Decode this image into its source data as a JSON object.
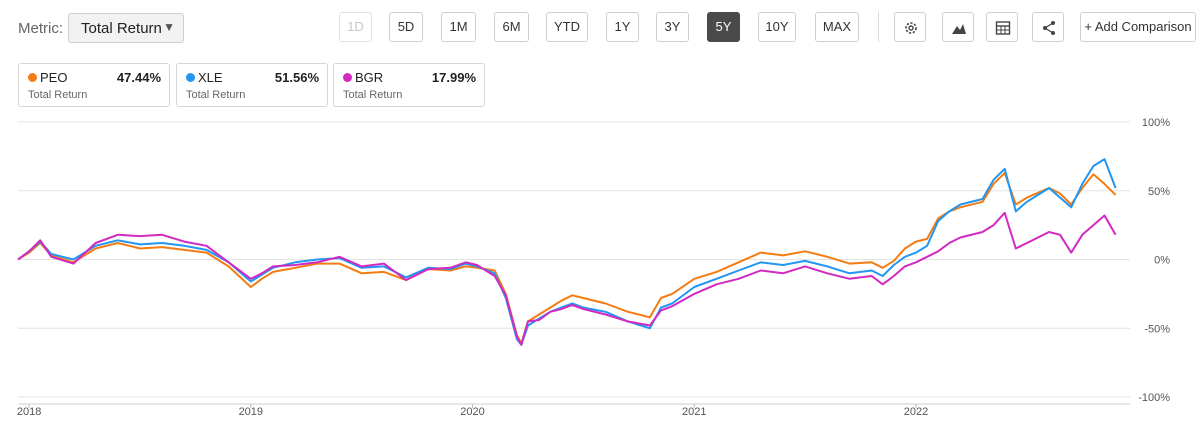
{
  "toolbar": {
    "metric_label": "Metric:",
    "metric_value": "Total Return",
    "ranges": [
      "1D",
      "5D",
      "1M",
      "6M",
      "YTD",
      "1Y",
      "3Y",
      "5Y",
      "10Y",
      "MAX"
    ],
    "disabled_range": "1D",
    "active_range": "5Y",
    "icons": [
      "gear-icon",
      "mountain-chart-icon",
      "table-icon",
      "share-icon"
    ],
    "add_comparison": "+ Add Comparison"
  },
  "legend": [
    {
      "ticker": "PEO",
      "value": "47.44%",
      "sub": "Total Return",
      "color": "#f57c12"
    },
    {
      "ticker": "XLE",
      "value": "51.56%",
      "sub": "Total Return",
      "color": "#2196f3"
    },
    {
      "ticker": "BGR",
      "value": "17.99%",
      "sub": "Total Return",
      "color": "#d12ac0"
    }
  ],
  "chart_data": {
    "type": "line",
    "ylim": [
      -100,
      100
    ],
    "yticks": [
      100,
      50,
      0,
      -50,
      -100
    ],
    "ytick_labels": [
      "100%",
      "50%",
      "0%",
      "-50%",
      "-100%"
    ],
    "xlim": [
      2017.95,
      2022.92
    ],
    "xticks": [
      2018,
      2019,
      2020,
      2021,
      2022
    ],
    "xtick_labels": [
      "2018",
      "2019",
      "2020",
      "2021",
      "2022"
    ],
    "grid": "horizontal",
    "series": [
      {
        "name": "PEO",
        "color": "#f57c12",
        "points": [
          [
            2017.95,
            0
          ],
          [
            2018.0,
            5
          ],
          [
            2018.05,
            12
          ],
          [
            2018.1,
            3
          ],
          [
            2018.2,
            -2
          ],
          [
            2018.3,
            8
          ],
          [
            2018.4,
            12
          ],
          [
            2018.5,
            8
          ],
          [
            2018.6,
            9
          ],
          [
            2018.7,
            7
          ],
          [
            2018.8,
            5
          ],
          [
            2018.9,
            -5
          ],
          [
            2019.0,
            -20
          ],
          [
            2019.05,
            -14
          ],
          [
            2019.1,
            -9
          ],
          [
            2019.2,
            -6
          ],
          [
            2019.3,
            -3
          ],
          [
            2019.4,
            -3
          ],
          [
            2019.5,
            -10
          ],
          [
            2019.6,
            -9
          ],
          [
            2019.7,
            -15
          ],
          [
            2019.8,
            -7
          ],
          [
            2019.9,
            -8
          ],
          [
            2019.97,
            -5
          ],
          [
            2020.02,
            -6
          ],
          [
            2020.1,
            -8
          ],
          [
            2020.15,
            -25
          ],
          [
            2020.2,
            -55
          ],
          [
            2020.22,
            -61
          ],
          [
            2020.25,
            -45
          ],
          [
            2020.3,
            -40
          ],
          [
            2020.35,
            -35
          ],
          [
            2020.4,
            -30
          ],
          [
            2020.45,
            -26
          ],
          [
            2020.5,
            -28
          ],
          [
            2020.6,
            -32
          ],
          [
            2020.7,
            -38
          ],
          [
            2020.8,
            -42
          ],
          [
            2020.85,
            -28
          ],
          [
            2020.9,
            -25
          ],
          [
            2021.0,
            -14
          ],
          [
            2021.1,
            -9
          ],
          [
            2021.2,
            -2
          ],
          [
            2021.3,
            5
          ],
          [
            2021.4,
            3
          ],
          [
            2021.5,
            6
          ],
          [
            2021.6,
            2
          ],
          [
            2021.7,
            -3
          ],
          [
            2021.8,
            -2
          ],
          [
            2021.85,
            -6
          ],
          [
            2021.9,
            -1
          ],
          [
            2021.95,
            8
          ],
          [
            2022.0,
            13
          ],
          [
            2022.05,
            15
          ],
          [
            2022.1,
            30
          ],
          [
            2022.15,
            35
          ],
          [
            2022.2,
            38
          ],
          [
            2022.3,
            42
          ],
          [
            2022.35,
            55
          ],
          [
            2022.4,
            63
          ],
          [
            2022.45,
            40
          ],
          [
            2022.5,
            45
          ],
          [
            2022.6,
            52
          ],
          [
            2022.65,
            48
          ],
          [
            2022.7,
            40
          ],
          [
            2022.75,
            52
          ],
          [
            2022.8,
            62
          ],
          [
            2022.85,
            55
          ],
          [
            2022.9,
            47
          ]
        ]
      },
      {
        "name": "XLE",
        "color": "#2196f3",
        "points": [
          [
            2017.95,
            0
          ],
          [
            2018.0,
            6
          ],
          [
            2018.05,
            13
          ],
          [
            2018.1,
            4
          ],
          [
            2018.2,
            0
          ],
          [
            2018.3,
            10
          ],
          [
            2018.4,
            14
          ],
          [
            2018.5,
            11
          ],
          [
            2018.6,
            12
          ],
          [
            2018.7,
            10
          ],
          [
            2018.8,
            7
          ],
          [
            2018.9,
            -2
          ],
          [
            2019.0,
            -16
          ],
          [
            2019.05,
            -11
          ],
          [
            2019.1,
            -6
          ],
          [
            2019.2,
            -2
          ],
          [
            2019.3,
            0
          ],
          [
            2019.4,
            1
          ],
          [
            2019.5,
            -6
          ],
          [
            2019.6,
            -5
          ],
          [
            2019.7,
            -13
          ],
          [
            2019.8,
            -6
          ],
          [
            2019.9,
            -7
          ],
          [
            2019.97,
            -3
          ],
          [
            2020.02,
            -5
          ],
          [
            2020.1,
            -10
          ],
          [
            2020.15,
            -28
          ],
          [
            2020.2,
            -58
          ],
          [
            2020.22,
            -62
          ],
          [
            2020.25,
            -48
          ],
          [
            2020.3,
            -43
          ],
          [
            2020.35,
            -38
          ],
          [
            2020.4,
            -35
          ],
          [
            2020.45,
            -32
          ],
          [
            2020.5,
            -35
          ],
          [
            2020.6,
            -38
          ],
          [
            2020.7,
            -45
          ],
          [
            2020.8,
            -50
          ],
          [
            2020.85,
            -35
          ],
          [
            2020.9,
            -32
          ],
          [
            2021.0,
            -20
          ],
          [
            2021.1,
            -14
          ],
          [
            2021.2,
            -8
          ],
          [
            2021.3,
            -2
          ],
          [
            2021.4,
            -4
          ],
          [
            2021.5,
            -1
          ],
          [
            2021.6,
            -5
          ],
          [
            2021.7,
            -10
          ],
          [
            2021.8,
            -8
          ],
          [
            2021.85,
            -12
          ],
          [
            2021.9,
            -4
          ],
          [
            2021.95,
            2
          ],
          [
            2022.0,
            5
          ],
          [
            2022.05,
            10
          ],
          [
            2022.1,
            28
          ],
          [
            2022.15,
            35
          ],
          [
            2022.2,
            40
          ],
          [
            2022.3,
            44
          ],
          [
            2022.35,
            58
          ],
          [
            2022.4,
            66
          ],
          [
            2022.45,
            35
          ],
          [
            2022.5,
            42
          ],
          [
            2022.6,
            52
          ],
          [
            2022.65,
            45
          ],
          [
            2022.7,
            38
          ],
          [
            2022.75,
            55
          ],
          [
            2022.8,
            68
          ],
          [
            2022.85,
            73
          ],
          [
            2022.9,
            52
          ]
        ]
      },
      {
        "name": "BGR",
        "color": "#d12ac0",
        "points": [
          [
            2017.95,
            0
          ],
          [
            2018.0,
            6
          ],
          [
            2018.05,
            14
          ],
          [
            2018.1,
            2
          ],
          [
            2018.2,
            -3
          ],
          [
            2018.3,
            12
          ],
          [
            2018.4,
            18
          ],
          [
            2018.5,
            17
          ],
          [
            2018.6,
            18
          ],
          [
            2018.7,
            13
          ],
          [
            2018.8,
            10
          ],
          [
            2018.9,
            -2
          ],
          [
            2019.0,
            -14
          ],
          [
            2019.05,
            -10
          ],
          [
            2019.1,
            -5
          ],
          [
            2019.2,
            -4
          ],
          [
            2019.3,
            -2
          ],
          [
            2019.4,
            2
          ],
          [
            2019.5,
            -5
          ],
          [
            2019.6,
            -3
          ],
          [
            2019.7,
            -15
          ],
          [
            2019.8,
            -7
          ],
          [
            2019.9,
            -6
          ],
          [
            2019.97,
            -2
          ],
          [
            2020.02,
            -4
          ],
          [
            2020.1,
            -12
          ],
          [
            2020.15,
            -26
          ],
          [
            2020.2,
            -56
          ],
          [
            2020.22,
            -62
          ],
          [
            2020.25,
            -45
          ],
          [
            2020.3,
            -44
          ],
          [
            2020.35,
            -38
          ],
          [
            2020.4,
            -36
          ],
          [
            2020.45,
            -33
          ],
          [
            2020.5,
            -36
          ],
          [
            2020.6,
            -40
          ],
          [
            2020.7,
            -45
          ],
          [
            2020.8,
            -48
          ],
          [
            2020.85,
            -37
          ],
          [
            2020.9,
            -34
          ],
          [
            2021.0,
            -25
          ],
          [
            2021.1,
            -18
          ],
          [
            2021.2,
            -14
          ],
          [
            2021.3,
            -8
          ],
          [
            2021.4,
            -10
          ],
          [
            2021.5,
            -5
          ],
          [
            2021.6,
            -10
          ],
          [
            2021.7,
            -14
          ],
          [
            2021.8,
            -12
          ],
          [
            2021.85,
            -18
          ],
          [
            2021.9,
            -12
          ],
          [
            2021.95,
            -5
          ],
          [
            2022.0,
            -2
          ],
          [
            2022.05,
            2
          ],
          [
            2022.1,
            6
          ],
          [
            2022.15,
            12
          ],
          [
            2022.2,
            16
          ],
          [
            2022.3,
            20
          ],
          [
            2022.35,
            25
          ],
          [
            2022.4,
            34
          ],
          [
            2022.45,
            8
          ],
          [
            2022.5,
            12
          ],
          [
            2022.6,
            20
          ],
          [
            2022.65,
            18
          ],
          [
            2022.7,
            5
          ],
          [
            2022.75,
            18
          ],
          [
            2022.8,
            25
          ],
          [
            2022.85,
            32
          ],
          [
            2022.9,
            18
          ]
        ]
      }
    ]
  }
}
